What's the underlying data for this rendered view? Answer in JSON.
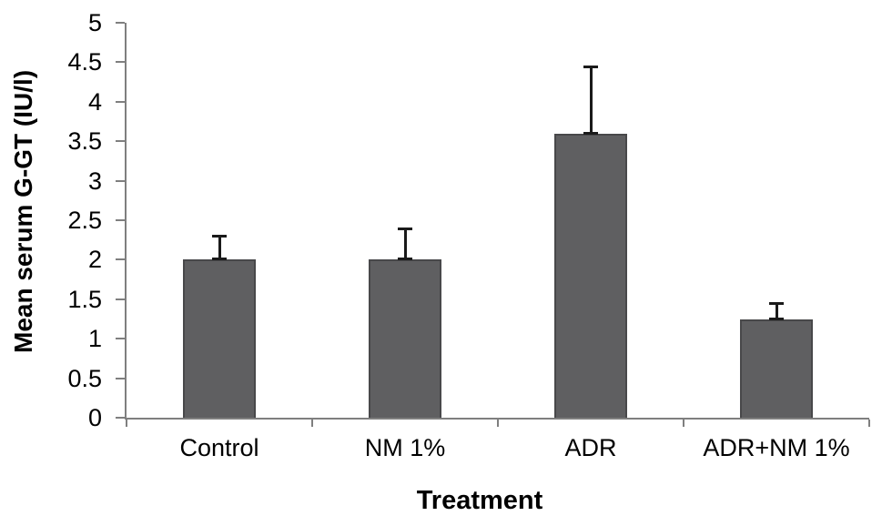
{
  "chart_data": {
    "type": "bar",
    "title": "",
    "xlabel": "Treatment",
    "ylabel": "Mean serum G-GT (IU/l)",
    "categories": [
      "Control",
      "NM 1%",
      "ADR",
      "ADR+NM 1%"
    ],
    "values": [
      2.0,
      2.0,
      3.6,
      1.25
    ],
    "error_plus": [
      0.3,
      0.4,
      0.85,
      0.2
    ],
    "ylim": [
      0,
      5
    ],
    "yticks": [
      0,
      0.5,
      1,
      1.5,
      2,
      2.5,
      3,
      3.5,
      4,
      4.5,
      5
    ],
    "ytick_labels": [
      "0",
      "0.5",
      "1",
      "1.5",
      "2",
      "2.5",
      "3",
      "3.5",
      "4",
      "4.5",
      "5"
    ],
    "grid": false,
    "legend": false,
    "colors": {
      "bar_fill": "#5f5f61",
      "bar_border": "#48484a",
      "axis": "#7f7f7f",
      "error_bar": "#1a1a1a",
      "text": "#000000",
      "background": "#ffffff"
    }
  }
}
